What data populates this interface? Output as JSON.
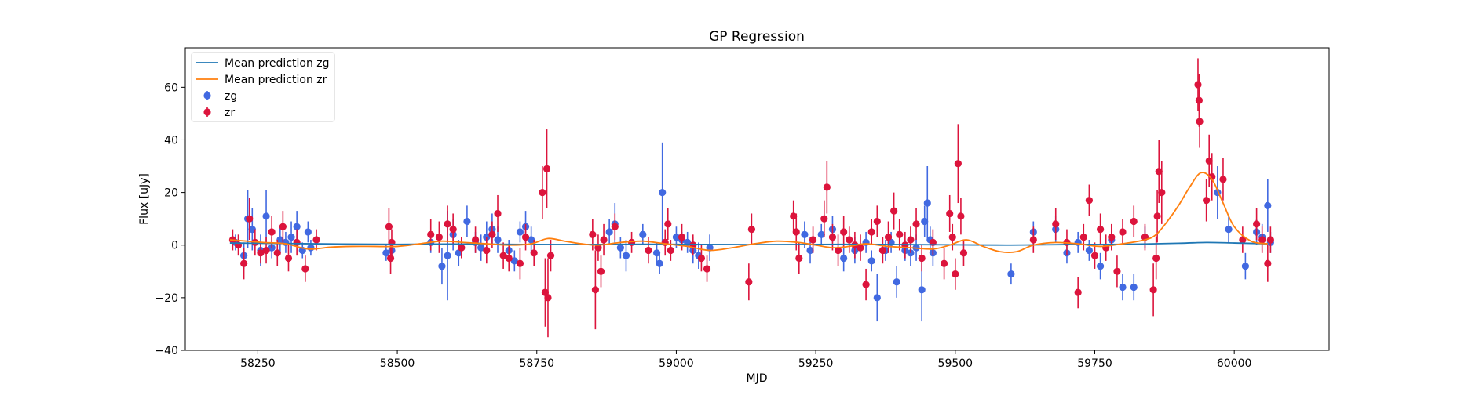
{
  "chart_data": {
    "type": "scatter",
    "title": "GP Regression",
    "xlabel": "MJD",
    "ylabel": "Flux [uJy]",
    "xlim": [
      58120,
      60170
    ],
    "ylim": [
      -40,
      75
    ],
    "xticks": [
      58250,
      58500,
      58750,
      59000,
      59250,
      59500,
      59750,
      60000
    ],
    "yticks": [
      -40,
      -20,
      0,
      20,
      40,
      60
    ],
    "grid": false,
    "legend_position": "top-left",
    "legend": [
      "Mean prediction zg",
      "Mean prediction zr",
      "zg",
      "zr"
    ],
    "lines": [
      {
        "name": "Mean prediction zg",
        "color": "#1f77b4",
        "x": [
          58200,
          58300,
          58400,
          58500,
          58600,
          58700,
          58800,
          58900,
          59000,
          59100,
          59200,
          59300,
          59400,
          59500,
          59600,
          59700,
          59800,
          59900,
          59950,
          60000,
          60060
        ],
        "y": [
          0.8,
          0.6,
          0.4,
          0.3,
          0.4,
          0.3,
          0.2,
          0.3,
          0.3,
          0.2,
          0.2,
          0.3,
          0.2,
          0.1,
          0.0,
          0.2,
          0.3,
          0.7,
          1.0,
          0.8,
          0.5
        ]
      },
      {
        "name": "Mean prediction zr",
        "color": "#ff7f0e",
        "x": [
          58200,
          58230,
          58260,
          58300,
          58340,
          58380,
          58420,
          58460,
          58500,
          58540,
          58580,
          58620,
          58660,
          58700,
          58740,
          58770,
          58800,
          58830,
          58860,
          58900,
          58940,
          58980,
          59020,
          59060,
          59100,
          59140,
          59180,
          59220,
          59250,
          59280,
          59310,
          59340,
          59380,
          59420,
          59460,
          59490,
          59520,
          59550,
          59580,
          59610,
          59640,
          59680,
          59720,
          59760,
          59800,
          59840,
          59860,
          59880,
          59900,
          59920,
          59940,
          59960,
          59980,
          60000,
          60030,
          60060
        ],
        "y": [
          2.0,
          1.5,
          1.0,
          0.5,
          -1.5,
          -0.8,
          -0.5,
          -0.5,
          -0.5,
          0.5,
          1.5,
          1.0,
          0.5,
          0.0,
          0.5,
          2.5,
          1.5,
          0.5,
          0.0,
          1.0,
          1.5,
          0.5,
          -0.5,
          -2.0,
          -1.0,
          0.5,
          1.5,
          1.0,
          0.0,
          -1.0,
          -0.5,
          0.5,
          -0.5,
          -1.0,
          -1.5,
          0.0,
          2.0,
          -0.5,
          -2.5,
          -2.5,
          0.0,
          1.0,
          0.5,
          -0.5,
          0.5,
          2.0,
          4.0,
          9.0,
          15.0,
          22.0,
          27.5,
          25.0,
          16.0,
          7.0,
          1.5,
          0.5
        ]
      }
    ],
    "series": [
      {
        "name": "zg",
        "color": "#4169e1",
        "points": [
          [
            58210,
            1,
            3
          ],
          [
            58225,
            -4,
            5
          ],
          [
            58232,
            10,
            11
          ],
          [
            58240,
            6,
            8
          ],
          [
            58255,
            -2,
            6
          ],
          [
            58265,
            11,
            10
          ],
          [
            58275,
            -1,
            4
          ],
          [
            58290,
            2,
            5
          ],
          [
            58300,
            1,
            4
          ],
          [
            58310,
            3,
            6
          ],
          [
            58320,
            7,
            6
          ],
          [
            58330,
            -2,
            3
          ],
          [
            58340,
            5,
            4
          ],
          [
            58345,
            -1,
            3
          ],
          [
            58480,
            -3,
            3
          ],
          [
            58490,
            -2,
            3
          ],
          [
            58560,
            1,
            4
          ],
          [
            58580,
            -8,
            7
          ],
          [
            58590,
            -4,
            17
          ],
          [
            58600,
            4,
            6
          ],
          [
            58610,
            -3,
            5
          ],
          [
            58625,
            9,
            6
          ],
          [
            58640,
            1,
            4
          ],
          [
            58650,
            -1,
            5
          ],
          [
            58660,
            3,
            6
          ],
          [
            58670,
            6,
            6
          ],
          [
            58680,
            2,
            5
          ],
          [
            58700,
            -2,
            4
          ],
          [
            58710,
            -6,
            4
          ],
          [
            58720,
            5,
            4
          ],
          [
            58730,
            7,
            6
          ],
          [
            58740,
            2,
            5
          ],
          [
            58880,
            5,
            5
          ],
          [
            58890,
            8,
            8
          ],
          [
            58900,
            -1,
            4
          ],
          [
            58910,
            -4,
            6
          ],
          [
            58940,
            4,
            4
          ],
          [
            58965,
            -3,
            4
          ],
          [
            58970,
            -7,
            4
          ],
          [
            58975,
            20,
            19
          ],
          [
            59000,
            3,
            4
          ],
          [
            59010,
            2,
            3
          ],
          [
            59020,
            1,
            4
          ],
          [
            59030,
            -2,
            5
          ],
          [
            59040,
            -4,
            5
          ],
          [
            59060,
            -1,
            5
          ],
          [
            59230,
            4,
            5
          ],
          [
            59240,
            -2,
            5
          ],
          [
            59260,
            4,
            4
          ],
          [
            59280,
            6,
            5
          ],
          [
            59300,
            -5,
            5
          ],
          [
            59320,
            -2,
            5
          ],
          [
            59340,
            1,
            4
          ],
          [
            59350,
            -6,
            4
          ],
          [
            59360,
            -20,
            9
          ],
          [
            59375,
            -2,
            4
          ],
          [
            59385,
            1,
            4
          ],
          [
            59395,
            -14,
            6
          ],
          [
            59410,
            -2,
            4
          ],
          [
            59420,
            -3,
            5
          ],
          [
            59430,
            -1,
            5
          ],
          [
            59440,
            -17,
            12
          ],
          [
            59445,
            9,
            6
          ],
          [
            59450,
            16,
            14
          ],
          [
            59455,
            2,
            5
          ],
          [
            59460,
            -3,
            5
          ],
          [
            59600,
            -11,
            4
          ],
          [
            59640,
            5,
            4
          ],
          [
            59680,
            6,
            5
          ],
          [
            59700,
            -3,
            4
          ],
          [
            59720,
            1,
            4
          ],
          [
            59740,
            -2,
            4
          ],
          [
            59760,
            -8,
            5
          ],
          [
            59780,
            2,
            4
          ],
          [
            59800,
            -16,
            5
          ],
          [
            59820,
            -16,
            5
          ],
          [
            59840,
            3,
            4
          ],
          [
            59970,
            20,
            10
          ],
          [
            59990,
            6,
            5
          ],
          [
            60020,
            -8,
            5
          ],
          [
            60040,
            5,
            5
          ],
          [
            60050,
            3,
            5
          ],
          [
            60060,
            15,
            10
          ],
          [
            60065,
            1,
            4
          ]
        ]
      },
      {
        "name": "zr",
        "color": "#dc143c",
        "points": [
          [
            58205,
            2,
            4
          ],
          [
            58215,
            0,
            4
          ],
          [
            58225,
            -7,
            6
          ],
          [
            58235,
            10,
            8
          ],
          [
            58245,
            1,
            5
          ],
          [
            58255,
            -3,
            4
          ],
          [
            58265,
            -2,
            5
          ],
          [
            58275,
            5,
            6
          ],
          [
            58285,
            -3,
            5
          ],
          [
            58295,
            7,
            6
          ],
          [
            58305,
            -5,
            5
          ],
          [
            58320,
            1,
            5
          ],
          [
            58335,
            -9,
            5
          ],
          [
            58355,
            2,
            4
          ],
          [
            58485,
            7,
            7
          ],
          [
            58488,
            -5,
            6
          ],
          [
            58490,
            1,
            5
          ],
          [
            58560,
            4,
            6
          ],
          [
            58575,
            3,
            6
          ],
          [
            58590,
            8,
            7
          ],
          [
            58600,
            6,
            6
          ],
          [
            58615,
            -1,
            4
          ],
          [
            58640,
            2,
            5
          ],
          [
            58660,
            -2,
            5
          ],
          [
            58670,
            4,
            5
          ],
          [
            58680,
            12,
            7
          ],
          [
            58690,
            -4,
            5
          ],
          [
            58700,
            -5,
            5
          ],
          [
            58720,
            -7,
            6
          ],
          [
            58730,
            3,
            5
          ],
          [
            58745,
            -3,
            5
          ],
          [
            58760,
            20,
            10
          ],
          [
            58765,
            -18,
            13
          ],
          [
            58768,
            29,
            15
          ],
          [
            58770,
            -20,
            15
          ],
          [
            58775,
            -4,
            6
          ],
          [
            58850,
            4,
            6
          ],
          [
            58855,
            -17,
            15
          ],
          [
            58860,
            -1,
            5
          ],
          [
            58865,
            -10,
            6
          ],
          [
            58870,
            2,
            6
          ],
          [
            58890,
            7,
            5
          ],
          [
            58920,
            1,
            4
          ],
          [
            58950,
            -2,
            5
          ],
          [
            58980,
            1,
            5
          ],
          [
            58985,
            8,
            6
          ],
          [
            58990,
            -2,
            4
          ],
          [
            59010,
            3,
            5
          ],
          [
            59030,
            0,
            4
          ],
          [
            59045,
            -5,
            5
          ],
          [
            59055,
            -9,
            5
          ],
          [
            59130,
            -14,
            7
          ],
          [
            59135,
            6,
            6
          ],
          [
            59210,
            11,
            6
          ],
          [
            59215,
            5,
            7
          ],
          [
            59220,
            -5,
            6
          ],
          [
            59245,
            2,
            5
          ],
          [
            59265,
            10,
            7
          ],
          [
            59270,
            22,
            10
          ],
          [
            59280,
            3,
            5
          ],
          [
            59290,
            -2,
            6
          ],
          [
            59300,
            5,
            6
          ],
          [
            59310,
            2,
            5
          ],
          [
            59320,
            0,
            5
          ],
          [
            59330,
            -1,
            5
          ],
          [
            59340,
            -15,
            6
          ],
          [
            59350,
            5,
            5
          ],
          [
            59360,
            9,
            6
          ],
          [
            59370,
            -2,
            5
          ],
          [
            59380,
            3,
            6
          ],
          [
            59390,
            13,
            7
          ],
          [
            59400,
            4,
            6
          ],
          [
            59410,
            0,
            5
          ],
          [
            59420,
            2,
            5
          ],
          [
            59430,
            8,
            6
          ],
          [
            59440,
            -5,
            5
          ],
          [
            59460,
            1,
            5
          ],
          [
            59480,
            -7,
            6
          ],
          [
            59490,
            12,
            7
          ],
          [
            59495,
            3,
            5
          ],
          [
            59500,
            -11,
            6
          ],
          [
            59505,
            31,
            15
          ],
          [
            59510,
            11,
            7
          ],
          [
            59515,
            -3,
            5
          ],
          [
            59640,
            2,
            5
          ],
          [
            59680,
            8,
            6
          ],
          [
            59700,
            1,
            5
          ],
          [
            59720,
            -18,
            6
          ],
          [
            59730,
            3,
            5
          ],
          [
            59740,
            17,
            6
          ],
          [
            59750,
            -4,
            5
          ],
          [
            59760,
            6,
            6
          ],
          [
            59770,
            -1,
            5
          ],
          [
            59780,
            3,
            5
          ],
          [
            59790,
            -10,
            6
          ],
          [
            59800,
            5,
            5
          ],
          [
            59820,
            9,
            6
          ],
          [
            59840,
            3,
            5
          ],
          [
            59855,
            -17,
            10
          ],
          [
            59860,
            -5,
            8
          ],
          [
            59862,
            11,
            10
          ],
          [
            59865,
            28,
            12
          ],
          [
            59870,
            20,
            12
          ],
          [
            59935,
            61,
            10
          ],
          [
            59937,
            55,
            10
          ],
          [
            59938,
            47,
            10
          ],
          [
            59950,
            17,
            8
          ],
          [
            59955,
            32,
            10
          ],
          [
            59960,
            26,
            9
          ],
          [
            59980,
            25,
            8
          ],
          [
            60015,
            2,
            5
          ],
          [
            60040,
            8,
            6
          ],
          [
            60050,
            2,
            5
          ],
          [
            60060,
            -7,
            7
          ],
          [
            60065,
            2,
            5
          ]
        ]
      }
    ]
  }
}
